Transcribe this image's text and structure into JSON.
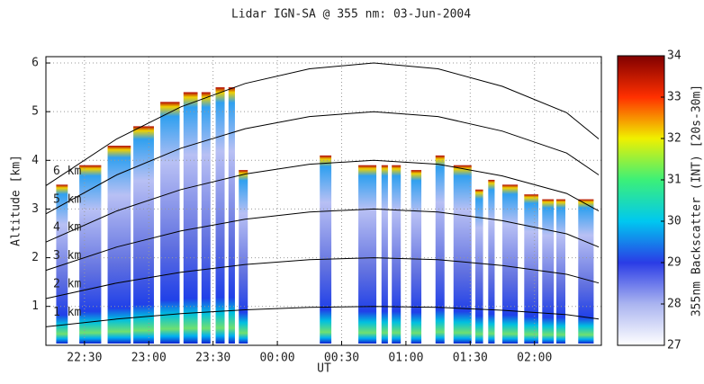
{
  "chart_data": {
    "type": "lidar",
    "title": "Lidar IGN-SA @ 355 nm: 03-Jun-2004",
    "x_label": "UT",
    "y_label": "Altitude [km]",
    "xlim": [
      22.2,
      26.52
    ],
    "xticks": [
      {
        "value": 22.5,
        "label": "22:30"
      },
      {
        "value": 23,
        "label": "23:00"
      },
      {
        "value": 23.5,
        "label": "23:30"
      },
      {
        "value": 24,
        "label": "00:00"
      },
      {
        "value": 24.5,
        "label": "00:30"
      },
      {
        "value": 25,
        "label": "01:00"
      },
      {
        "value": 25.5,
        "label": "01:30"
      },
      {
        "value": 26,
        "label": "02:00"
      }
    ],
    "ylim": [
      0.2,
      6.13
    ],
    "yticks": [
      1,
      2,
      3,
      4,
      5,
      6
    ],
    "grid": true,
    "profiles": {
      "start": [
        22.28,
        22.46,
        22.68,
        22.88,
        23.09,
        23.27,
        23.41,
        23.52,
        23.62,
        23.7,
        24.33,
        24.63,
        24.81,
        24.89,
        25.04,
        25.23,
        25.37,
        25.54,
        25.64,
        25.75,
        25.92,
        26.06,
        26.17,
        26.34
      ],
      "end": [
        22.37,
        22.63,
        22.86,
        23.04,
        23.24,
        23.38,
        23.48,
        23.59,
        23.67,
        23.77,
        24.42,
        24.77,
        24.86,
        24.96,
        25.12,
        25.3,
        25.51,
        25.6,
        25.69,
        25.87,
        26.03,
        26.15,
        26.24,
        26.46
      ],
      "top": [
        3.5,
        3.9,
        4.3,
        4.7,
        5.2,
        5.4,
        5.4,
        5.5,
        5.5,
        3.8,
        4.1,
        3.9,
        3.9,
        3.9,
        3.8,
        4.1,
        3.9,
        3.4,
        3.6,
        3.5,
        3.3,
        3.2,
        3.2,
        3.2
      ]
    },
    "x": [
      22.2,
      22.75,
      23.25,
      23.75,
      24.25,
      24.75,
      25.25,
      25.75,
      26.25,
      26.5
    ],
    "series": [
      {
        "name": "1 km",
        "color": "#000000",
        "values": [
          0.58,
          0.74,
          0.85,
          0.93,
          0.98,
          1.0,
          0.98,
          0.92,
          0.83,
          0.74
        ]
      },
      {
        "name": "2 km",
        "color": "#000000",
        "values": [
          1.16,
          1.48,
          1.7,
          1.86,
          1.96,
          2.0,
          1.96,
          1.84,
          1.66,
          1.48
        ]
      },
      {
        "name": "3 km",
        "color": "#000000",
        "values": [
          1.74,
          2.22,
          2.55,
          2.79,
          2.94,
          3.0,
          2.94,
          2.76,
          2.49,
          2.22
        ]
      },
      {
        "name": "4 km",
        "color": "#000000",
        "values": [
          2.32,
          2.96,
          3.4,
          3.72,
          3.92,
          4.0,
          3.92,
          3.68,
          3.32,
          2.96
        ]
      },
      {
        "name": "5 km",
        "color": "#000000",
        "values": [
          2.9,
          3.7,
          4.25,
          4.65,
          4.9,
          5.0,
          4.9,
          4.6,
          4.15,
          3.7
        ]
      },
      {
        "name": "6 km",
        "color": "#000000",
        "values": [
          3.48,
          4.44,
          5.1,
          5.58,
          5.88,
          6.0,
          5.88,
          5.52,
          4.98,
          4.44
        ]
      }
    ],
    "colorbar": {
      "label": "355nm Backscatter (INT) [20s-30m]",
      "lim": [
        27,
        34
      ],
      "ticks": [
        27,
        28,
        29,
        30,
        31,
        32,
        33,
        34
      ],
      "colormap": [
        "#ffffff",
        "#aab4f0",
        "#2a3ce6",
        "#00c8f0",
        "#3cf078",
        "#f0f000",
        "#ff3000",
        "#800000"
      ]
    }
  }
}
